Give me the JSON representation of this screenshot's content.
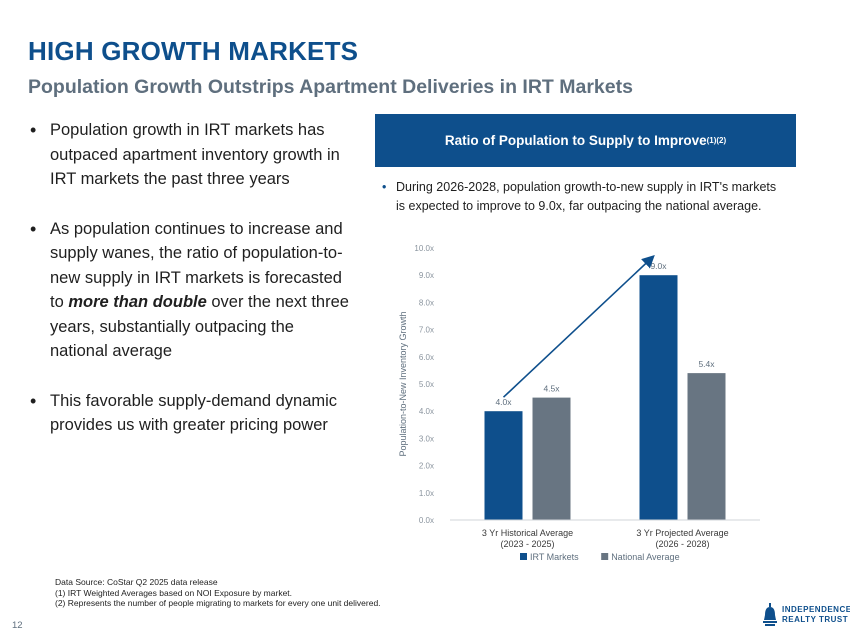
{
  "header": {
    "title": "HIGH GROWTH MARKETS",
    "subtitle": "Population Growth Outstrips Apartment Deliveries in IRT Markets"
  },
  "bullets": [
    {
      "text": "Population growth in IRT markets has outpaced apartment inventory growth in IRT markets the past three years"
    },
    {
      "before": "As population continues to increase and supply wanes, the ratio of population-to-new supply in IRT markets is forecasted to ",
      "emphasis": "more than double",
      "after": " over the next three years, substantially outpacing the national average"
    },
    {
      "text": "This favorable supply-demand dynamic provides us with greater pricing power"
    }
  ],
  "panel": {
    "header": "Ratio of Population to Supply to Improve",
    "header_superscript": "(1)(2)",
    "note": "During 2026-2028, population growth-to-new supply in IRT's markets is expected to improve to 9.0x, far outpacing the national average."
  },
  "chart_data": {
    "type": "bar",
    "ylabel": "Population-to-New Inventory Growth",
    "ylim": [
      0,
      10
    ],
    "yticks": [
      0,
      1,
      2,
      3,
      4,
      5,
      6,
      7,
      8,
      9,
      10
    ],
    "ytick_labels": [
      "0.0x",
      "1.0x",
      "2.0x",
      "3.0x",
      "4.0x",
      "5.0x",
      "6.0x",
      "7.0x",
      "8.0x",
      "9.0x",
      "10.0x"
    ],
    "categories": [
      {
        "line1": "3 Yr Historical Average",
        "line2": "(2023 - 2025)"
      },
      {
        "line1": "3 Yr Projected Average",
        "line2": "(2026 - 2028)"
      }
    ],
    "series": [
      {
        "name": "IRT Markets",
        "color": "#0e4f8c",
        "values": [
          4.0,
          9.0
        ],
        "labels": [
          "4.0x",
          "9.0x"
        ]
      },
      {
        "name": "National Average",
        "color": "#687582",
        "values": [
          4.5,
          5.4
        ],
        "labels": [
          "4.5x",
          "5.4x"
        ]
      }
    ],
    "annotation": "arrow from IRT historical bar to IRT projected bar",
    "grid": false,
    "legend": "bottom"
  },
  "footnotes": {
    "line1": "Data Source: CoStar Q2 2025 data release",
    "line2": "(1)  IRT Weighted Averages based on NOI Exposure by market.",
    "line3": "(2)  Represents the number of people migrating to markets for every one unit delivered."
  },
  "page_number": "12",
  "logo": {
    "line1": "INDEPENDENCE",
    "line2": "REALTY TRUST"
  }
}
